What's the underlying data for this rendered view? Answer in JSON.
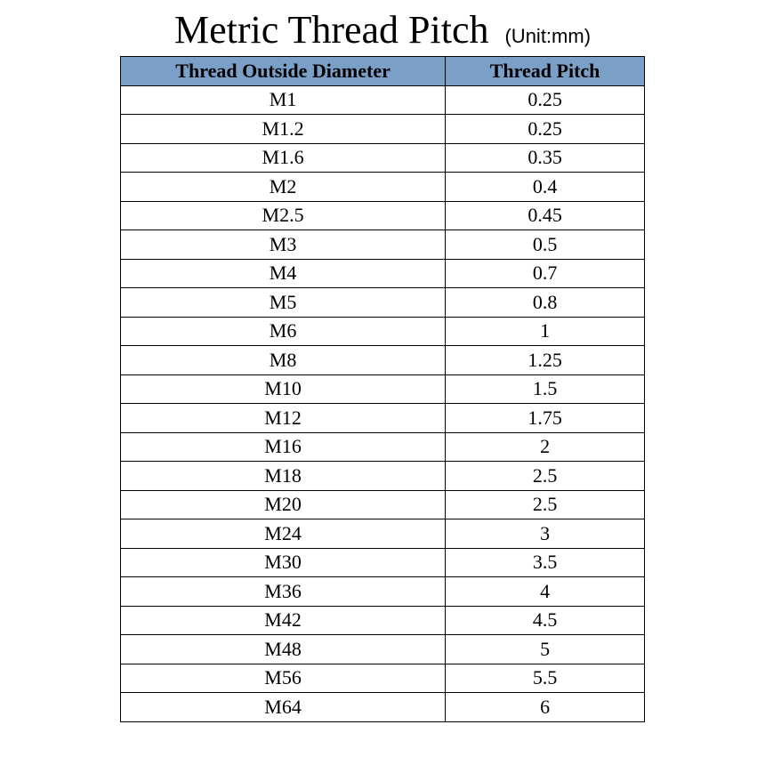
{
  "title": "Metric Thread Pitch",
  "unit_label": "(Unit:mm)",
  "table": {
    "type": "table",
    "header_bg": "#7ba0c8",
    "border_color": "#000000",
    "background_color": "#ffffff",
    "title_fontsize": 44,
    "cell_fontsize": 22,
    "font_family": "Times New Roman",
    "column_widths": [
      "62%",
      "38%"
    ],
    "columns": [
      "Thread Outside Diameter",
      "Thread Pitch"
    ],
    "rows": [
      [
        "M1",
        "0.25"
      ],
      [
        "M1.2",
        "0.25"
      ],
      [
        "M1.6",
        "0.35"
      ],
      [
        "M2",
        "0.4"
      ],
      [
        "M2.5",
        "0.45"
      ],
      [
        "M3",
        "0.5"
      ],
      [
        "M4",
        "0.7"
      ],
      [
        "M5",
        "0.8"
      ],
      [
        "M6",
        "1"
      ],
      [
        "M8",
        "1.25"
      ],
      [
        "M10",
        "1.5"
      ],
      [
        "M12",
        "1.75"
      ],
      [
        "M16",
        "2"
      ],
      [
        "M18",
        "2.5"
      ],
      [
        "M20",
        "2.5"
      ],
      [
        "M24",
        "3"
      ],
      [
        "M30",
        "3.5"
      ],
      [
        "M36",
        "4"
      ],
      [
        "M42",
        "4.5"
      ],
      [
        "M48",
        "5"
      ],
      [
        "M56",
        "5.5"
      ],
      [
        "M64",
        "6"
      ]
    ]
  }
}
